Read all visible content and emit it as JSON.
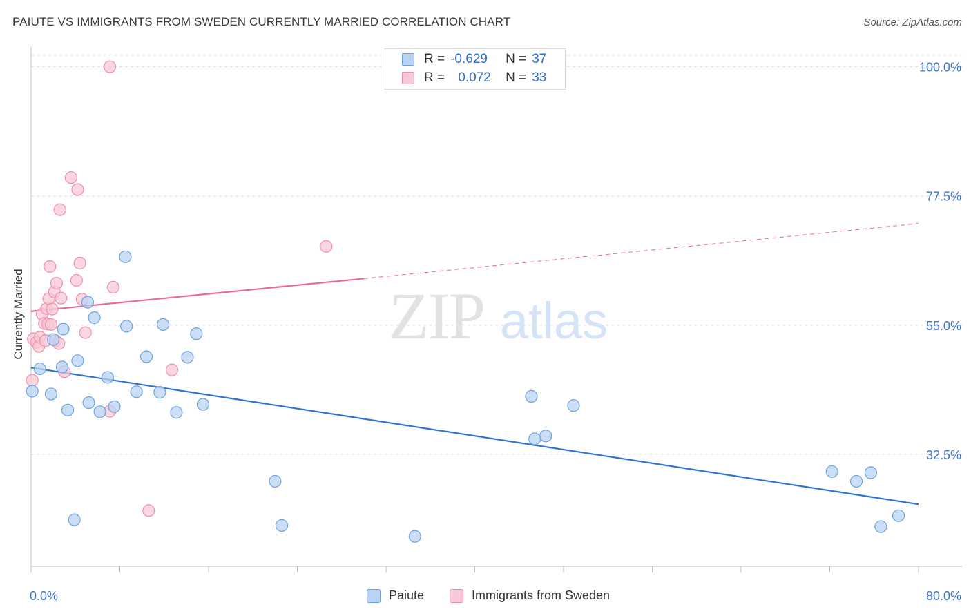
{
  "title": "PAIUTE VS IMMIGRANTS FROM SWEDEN CURRENTLY MARRIED CORRELATION CHART",
  "source": "Source: ZipAtlas.com",
  "watermark": {
    "zip": "ZIP",
    "atlas": "atlas"
  },
  "legend": {
    "rows": [
      {
        "r_label": "R =",
        "r_value": "-0.629",
        "n_label": "N =",
        "n_value": "37"
      },
      {
        "r_label": "R =",
        "r_value": "0.072",
        "n_label": "N =",
        "n_value": "33"
      }
    ]
  },
  "bottom_legend": {
    "series1": "Paiute",
    "series2": "Immigrants from Sweden"
  },
  "colors": {
    "paiute_fill": "#b8d3f3",
    "paiute_stroke": "#6ea0e0",
    "paiute_line": "#2f74d0",
    "sweden_fill": "#f8c8d6",
    "sweden_stroke": "#ec8fac",
    "sweden_line": "#e8699a",
    "tick_label": "#3d74c8",
    "grid": "#dedede"
  },
  "chart_data": {
    "type": "scatter",
    "title": "PAIUTE VS IMMIGRANTS FROM SWEDEN CURRENTLY MARRIED CORRELATION CHART",
    "xlabel": "",
    "ylabel": "Currently Married",
    "xlim": [
      0,
      80
    ],
    "ylim": [
      13,
      102
    ],
    "x_tick_labels": [
      "0.0%",
      "80.0%"
    ],
    "y_ticks": [
      32.5,
      55.0,
      77.5,
      100.0
    ],
    "y_tick_labels": [
      "32.5%",
      "55.0%",
      "77.5%",
      "100.0%"
    ],
    "grid": true,
    "series": [
      {
        "name": "Paiute",
        "points": [
          [
            0.1,
            43.5
          ],
          [
            0.8,
            47.4
          ],
          [
            1.8,
            43.0
          ],
          [
            2.0,
            52.5
          ],
          [
            2.8,
            47.7
          ],
          [
            2.9,
            54.3
          ],
          [
            3.3,
            40.2
          ],
          [
            3.9,
            21.1
          ],
          [
            4.2,
            48.8
          ],
          [
            5.1,
            59.0
          ],
          [
            5.2,
            41.5
          ],
          [
            5.7,
            56.3
          ],
          [
            6.2,
            39.9
          ],
          [
            6.9,
            45.9
          ],
          [
            7.5,
            40.8
          ],
          [
            8.5,
            66.9
          ],
          [
            8.6,
            54.8
          ],
          [
            9.5,
            43.4
          ],
          [
            10.4,
            49.5
          ],
          [
            11.6,
            43.3
          ],
          [
            11.9,
            55.1
          ],
          [
            13.1,
            39.8
          ],
          [
            14.1,
            49.4
          ],
          [
            14.9,
            53.5
          ],
          [
            15.5,
            41.2
          ],
          [
            22.0,
            27.8
          ],
          [
            22.6,
            20.1
          ],
          [
            34.6,
            18.2
          ],
          [
            45.1,
            42.6
          ],
          [
            45.4,
            35.2
          ],
          [
            46.4,
            35.7
          ],
          [
            48.9,
            41.0
          ],
          [
            72.2,
            29.5
          ],
          [
            74.4,
            27.8
          ],
          [
            75.7,
            29.3
          ],
          [
            76.6,
            19.9
          ],
          [
            78.2,
            21.8
          ]
        ]
      },
      {
        "name": "Immigrants from Sweden",
        "points": [
          [
            0.1,
            45.4
          ],
          [
            0.2,
            52.6
          ],
          [
            0.5,
            52.0
          ],
          [
            0.7,
            51.3
          ],
          [
            0.8,
            52.9
          ],
          [
            1.0,
            56.9
          ],
          [
            1.2,
            55.3
          ],
          [
            1.3,
            52.3
          ],
          [
            1.4,
            57.9
          ],
          [
            1.5,
            55.2
          ],
          [
            1.6,
            59.6
          ],
          [
            1.7,
            65.2
          ],
          [
            1.8,
            55.1
          ],
          [
            1.9,
            57.8
          ],
          [
            2.1,
            60.8
          ],
          [
            2.2,
            52.3
          ],
          [
            2.3,
            62.3
          ],
          [
            2.5,
            51.8
          ],
          [
            2.6,
            75.1
          ],
          [
            2.7,
            59.7
          ],
          [
            3.0,
            46.9
          ],
          [
            3.6,
            80.7
          ],
          [
            4.1,
            62.8
          ],
          [
            4.2,
            78.6
          ],
          [
            4.4,
            65.8
          ],
          [
            4.6,
            59.5
          ],
          [
            4.9,
            53.7
          ],
          [
            7.1,
            40.0
          ],
          [
            7.1,
            100.0
          ],
          [
            7.4,
            61.6
          ],
          [
            10.6,
            22.7
          ],
          [
            12.7,
            47.2
          ],
          [
            26.6,
            68.7
          ]
        ]
      }
    ],
    "trend_lines": [
      {
        "series": "Paiute",
        "x": [
          0,
          80
        ],
        "y": [
          47.6,
          23.8
        ],
        "style": "solid"
      },
      {
        "series": "Immigrants from Sweden",
        "x": [
          0,
          30
        ],
        "y": [
          57.4,
          63.1
        ],
        "style": "solid"
      },
      {
        "series": "Immigrants from Sweden",
        "x": [
          30,
          80
        ],
        "y": [
          63.1,
          72.7
        ],
        "style": "dashed"
      }
    ]
  }
}
